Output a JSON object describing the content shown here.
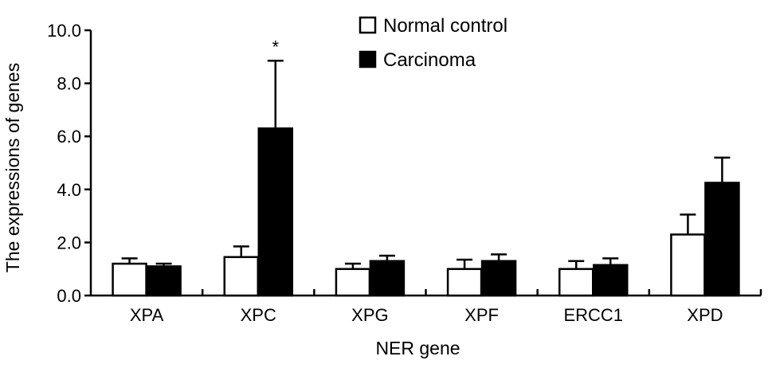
{
  "chart_data": {
    "type": "bar",
    "xlabel": "NER gene",
    "ylabel": "The expressions of genes",
    "ylim": [
      0,
      10
    ],
    "yticks": [
      "0.0",
      "2.0",
      "4.0",
      "6.0",
      "8.0",
      "10.0"
    ],
    "categories": [
      "XPA",
      "XPC",
      "XPG",
      "XPF",
      "ERCC1",
      "XPD"
    ],
    "series": [
      {
        "name": "Normal control",
        "values": [
          1.2,
          1.45,
          1.0,
          1.0,
          1.0,
          2.3
        ],
        "errors": [
          0.2,
          0.4,
          0.2,
          0.35,
          0.3,
          0.75
        ],
        "fill": "#ffffff"
      },
      {
        "name": "Carcinoma",
        "values": [
          1.1,
          6.3,
          1.3,
          1.3,
          1.15,
          4.25
        ],
        "errors": [
          0.1,
          2.55,
          0.2,
          0.25,
          0.25,
          0.95
        ],
        "fill": "#000000"
      }
    ],
    "annotations": [
      {
        "category": "XPC",
        "series": "Carcinoma",
        "text": "*"
      }
    ],
    "grid": false,
    "legend_position": "top-right"
  }
}
